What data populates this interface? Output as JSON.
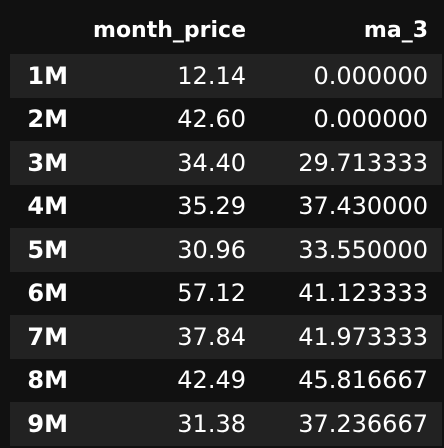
{
  "table": {
    "columns": [
      "month_price",
      "ma_3"
    ],
    "rows": [
      {
        "index": "1M",
        "month_price": "12.14",
        "ma_3": "0.000000"
      },
      {
        "index": "2M",
        "month_price": "42.60",
        "ma_3": "0.000000"
      },
      {
        "index": "3M",
        "month_price": "34.40",
        "ma_3": "29.713333"
      },
      {
        "index": "4M",
        "month_price": "35.29",
        "ma_3": "37.430000"
      },
      {
        "index": "5M",
        "month_price": "30.96",
        "ma_3": "33.550000"
      },
      {
        "index": "6M",
        "month_price": "57.12",
        "ma_3": "41.123333"
      },
      {
        "index": "7M",
        "month_price": "37.84",
        "ma_3": "41.973333"
      },
      {
        "index": "8M",
        "month_price": "42.49",
        "ma_3": "45.816667"
      },
      {
        "index": "9M",
        "month_price": "31.38",
        "ma_3": "37.236667"
      }
    ]
  },
  "colors": {
    "background": "#111111",
    "stripe": "#222222",
    "text": "#ffffff"
  }
}
